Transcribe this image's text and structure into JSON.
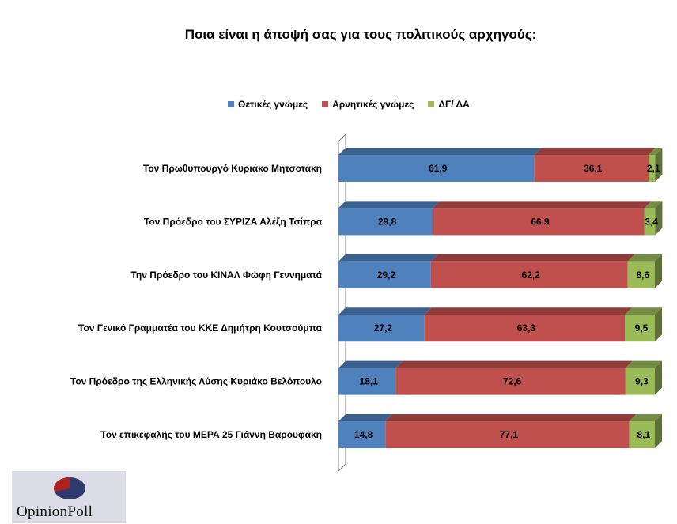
{
  "chart_data": {
    "type": "bar",
    "orientation": "horizontal",
    "stacked": true,
    "title": "Ποια είναι η άποψή σας για τους πολιτικούς αρχηγούς:",
    "legend_position": "top",
    "categories": [
      "Τον Πρωθυπουργό Κυριάκο Μητσοτάκη",
      "Τον Πρόεδρο του ΣΥΡΙΖΑ Αλέξη Τσίπρα",
      "Την Πρόεδρο του ΚΙΝΑΛ Φώφη Γεννηματά",
      "Τον Γενικό Γραμματέα του ΚΚΕ Δημήτρη Κουτσούμπα",
      "Τον Πρόεδρο της Ελληνικής Λύσης Κυριάκο Βελόπουλο",
      "Τον επικεφαλής του ΜΕΡΑ 25 Γιάννη Βαρουφάκη"
    ],
    "series": [
      {
        "name": "Θετικές γνώμες",
        "color": "#4f81bd",
        "values": [
          61.9,
          29.8,
          29.2,
          27.2,
          18.1,
          14.8
        ],
        "labels": [
          "61,9",
          "29,8",
          "29,2",
          "27,2",
          "18,1",
          "14,8"
        ]
      },
      {
        "name": "Αρνητικές γνώμες",
        "color": "#c0504d",
        "values": [
          36.1,
          66.9,
          62.2,
          63.3,
          72.6,
          77.1
        ],
        "labels": [
          "36,1",
          "66,9",
          "62,2",
          "63,3",
          "72,6",
          "77,1"
        ]
      },
      {
        "name": "ΔΓ/ ΔΑ",
        "color": "#9bbb59",
        "values": [
          2.1,
          3.4,
          8.6,
          9.5,
          9.3,
          8.1
        ],
        "labels": [
          "2,1",
          "3,4",
          "8,6",
          "9,5",
          "9,3",
          "8,1"
        ]
      }
    ],
    "xlim": [
      0,
      100
    ],
    "grid": false
  },
  "logo": {
    "text": "OpinionPoll"
  }
}
